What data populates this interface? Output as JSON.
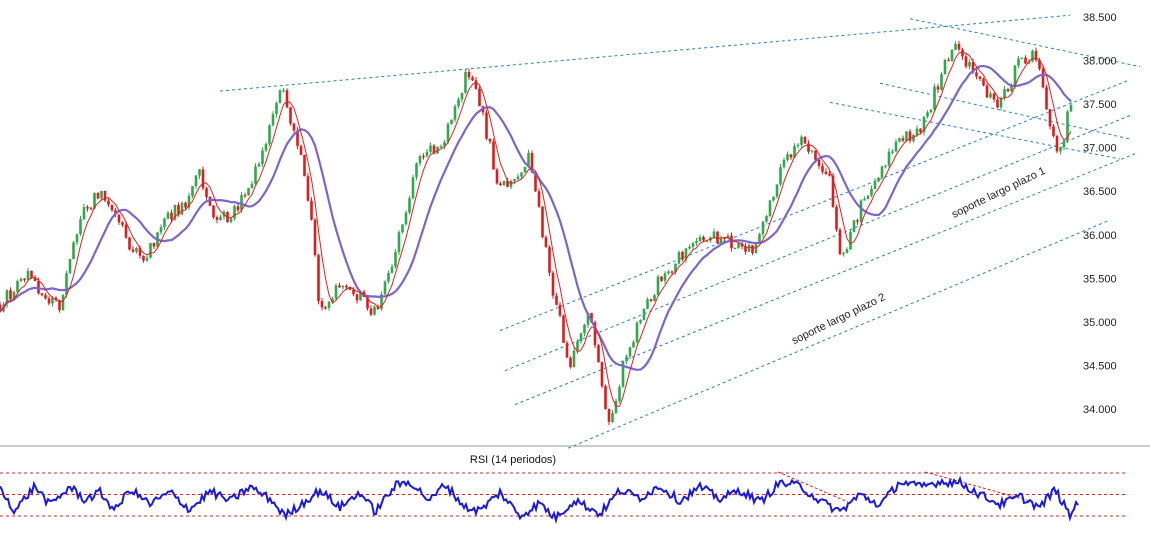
{
  "colors": {
    "up": "#2eaa4a",
    "down": "#e01b1b",
    "wick": "#d03030",
    "ma_fast": "#e02020",
    "ma_slow": "#7a66cc",
    "trend": "#2b7fc6",
    "rsi_line": "#1a1adc",
    "rsi_levels": "#e02020",
    "divider": "#999999"
  },
  "chart_data": {
    "type": "line",
    "price_axis": {
      "ylim": [
        33700,
        38650
      ],
      "ticks": [
        "38.500",
        "38.000",
        "37.500",
        "37.000",
        "36.500",
        "36.000",
        "35.500",
        "35.000",
        "34.500",
        "34.000"
      ],
      "tick_values": [
        38500,
        38000,
        37500,
        37000,
        36500,
        36000,
        35500,
        35000,
        34500,
        34000
      ]
    },
    "key_points": {
      "x": [
        0,
        30,
        40,
        60,
        80,
        100,
        130,
        145,
        165,
        185,
        200,
        215,
        235,
        260,
        280,
        295,
        310,
        320,
        340,
        360,
        375,
        400,
        420,
        445,
        468,
        480,
        500,
        530,
        550,
        570,
        590,
        608,
        625,
        640,
        660,
        685,
        710,
        735,
        755,
        780,
        800,
        815,
        830,
        842,
        860,
        880,
        900,
        920,
        940,
        955,
        975,
        1000,
        1020,
        1035,
        1045,
        1060,
        1070
      ],
      "y": [
        35200,
        35600,
        35300,
        35200,
        36200,
        36500,
        35900,
        35700,
        36200,
        36350,
        36700,
        36100,
        36300,
        36800,
        37700,
        37200,
        36300,
        35100,
        35400,
        35300,
        35100,
        36000,
        36900,
        37100,
        37900,
        37500,
        36500,
        36900,
        35500,
        34500,
        35100,
        33750,
        34600,
        35000,
        35500,
        35800,
        36000,
        35900,
        35800,
        36700,
        37100,
        36900,
        36600,
        35700,
        36300,
        36700,
        37100,
        37150,
        37800,
        38250,
        37800,
        37500,
        38000,
        38100,
        37500,
        36900,
        37500
      ]
    },
    "moving_averages": [
      "fast",
      "slow"
    ],
    "trend_lines": [
      {
        "x": [
          220,
          1070
        ],
        "y": [
          37650,
          38520
        ]
      },
      {
        "x": [
          910,
          1140
        ],
        "y": [
          38480,
          37930
        ]
      },
      {
        "x": [
          880,
          1130
        ],
        "y": [
          37740,
          37100
        ]
      },
      {
        "x": [
          830,
          1120
        ],
        "y": [
          37520,
          36870
        ]
      },
      {
        "x": [
          500,
          1130
        ],
        "y": [
          34900,
          37780
        ]
      },
      {
        "x": [
          505,
          1130
        ],
        "y": [
          34440,
          37370
        ]
      },
      {
        "x": [
          515,
          1135
        ],
        "y": [
          34050,
          36930
        ]
      },
      {
        "x": [
          568,
          1110
        ],
        "y": [
          33550,
          36170
        ]
      }
    ],
    "annotations": [
      {
        "text": "soporte largo plazo 1",
        "x": 1000,
        "y": 36450,
        "angle": -26
      },
      {
        "text": "soporte largo plazo 2",
        "x": 840,
        "y": 35000,
        "angle": -26
      }
    ],
    "rsi": {
      "title": "RSI (14 periodos)",
      "levels": [
        70,
        50,
        30
      ],
      "ylim": [
        25,
        75
      ],
      "key_points": {
        "x": [
          0,
          15,
          35,
          50,
          70,
          85,
          100,
          115,
          130,
          150,
          170,
          190,
          210,
          230,
          250,
          270,
          285,
          300,
          320,
          340,
          360,
          375,
          395,
          410,
          430,
          445,
          465,
          480,
          500,
          520,
          540,
          555,
          575,
          600,
          620,
          640,
          660,
          680,
          700,
          720,
          740,
          760,
          780,
          800,
          820,
          840,
          860,
          880,
          900,
          920,
          940,
          960,
          980,
          1000,
          1020,
          1040,
          1055,
          1070,
          1078
        ],
        "y": [
          55,
          35,
          58,
          40,
          57,
          45,
          52,
          35,
          55,
          41,
          52,
          36,
          53,
          44,
          57,
          46,
          30,
          40,
          54,
          38,
          52,
          34,
          58,
          62,
          44,
          60,
          38,
          35,
          52,
          30,
          42,
          28,
          45,
          32,
          54,
          47,
          58,
          44,
          57,
          46,
          54,
          43,
          61,
          58,
          44,
          34,
          50,
          40,
          62,
          57,
          62,
          61,
          50,
          41,
          48,
          38,
          55,
          30,
          44
        ]
      },
      "trend_lines": [
        {
          "x": [
            778,
            848
          ],
          "y": [
            71,
            43
          ]
        },
        {
          "x": [
            925,
            1030
          ],
          "y": [
            71,
            44
          ]
        }
      ]
    }
  }
}
